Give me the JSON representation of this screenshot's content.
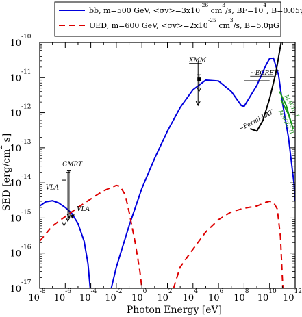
{
  "chart_data": {
    "type": "line",
    "xlabel": "Photon Energy [eV]",
    "ylabel": "SED [erg/cm",
    "ylabel_sup": "2",
    "ylabel_end": " s]",
    "x_scale": "log",
    "y_scale": "log",
    "xlim": [
      1e-08,
      1000000000000.0
    ],
    "ylim": [
      1e-17,
      1e-10
    ],
    "x_ticks": [
      {
        "value": 1e-08,
        "base": "10",
        "exp": "-8"
      },
      {
        "value": 1e-06,
        "base": "10",
        "exp": "-6"
      },
      {
        "value": 0.0001,
        "base": "10",
        "exp": "-4"
      },
      {
        "value": 0.01,
        "base": "10",
        "exp": "-2"
      },
      {
        "value": 1,
        "base": "10",
        "exp": "0"
      },
      {
        "value": 100.0,
        "base": "10",
        "exp": "2"
      },
      {
        "value": 10000.0,
        "base": "10",
        "exp": "4"
      },
      {
        "value": 1000000.0,
        "base": "10",
        "exp": "6"
      },
      {
        "value": 100000000.0,
        "base": "10",
        "exp": "8"
      },
      {
        "value": 10000000000.0,
        "base": "10",
        "exp": "10"
      },
      {
        "value": 1000000000000.0,
        "base": "10",
        "exp": "12"
      }
    ],
    "y_ticks": [
      {
        "value": 1e-17,
        "base": "10",
        "exp": "-17"
      },
      {
        "value": 1e-16,
        "base": "10",
        "exp": "-16"
      },
      {
        "value": 1e-15,
        "base": "10",
        "exp": "-15"
      },
      {
        "value": 1e-14,
        "base": "10",
        "exp": "-14"
      },
      {
        "value": 1e-13,
        "base": "10",
        "exp": "-13"
      },
      {
        "value": 1e-12,
        "base": "10",
        "exp": "-12"
      },
      {
        "value": 1e-11,
        "base": "10",
        "exp": "-11"
      },
      {
        "value": 1e-10,
        "base": "10",
        "exp": "-10"
      }
    ],
    "legend_placement": "top",
    "legend": [
      {
        "parts": [
          "bb, m=500 GeV, <σv>=3x10",
          "-26",
          " cm",
          "3",
          "/s, BF=10",
          "4",
          ", B=0.05μG"
        ]
      },
      {
        "parts": [
          "UED, m=600 GeV, <σv>=2x10",
          "-25",
          " cm",
          "3",
          "/s, B=5.0μG"
        ]
      }
    ],
    "series": [
      {
        "color": "#0000dd",
        "style": "solid",
        "points": [
          [
            1e-08,
            2.2e-15
          ],
          [
            3e-08,
            2.9e-15
          ],
          [
            1e-07,
            3.1e-15
          ],
          [
            3e-07,
            2.7e-15
          ],
          [
            1e-06,
            2e-15
          ],
          [
            3e-06,
            1.4e-15
          ],
          [
            1e-05,
            7e-16
          ],
          [
            3e-05,
            2.2e-16
          ],
          [
            6e-05,
            5e-17
          ],
          [
            9e-05,
            1e-17
          ]
        ]
      },
      {
        "color": "#0000dd",
        "style": "solid",
        "points": [
          [
            0.004,
            1e-17
          ],
          [
            0.01,
            4e-17
          ],
          [
            0.1,
            6e-16
          ],
          [
            1,
            7e-15
          ],
          [
            10,
            5e-14
          ],
          [
            100,
            3e-13
          ],
          [
            1000,
            1.4e-12
          ],
          [
            10000.0,
            4.5e-12
          ],
          [
            100000.0,
            8.5e-12
          ],
          [
            1000000.0,
            8e-12
          ],
          [
            10000000.0,
            4e-12
          ],
          [
            60000000.0,
            1.6e-12
          ],
          [
            100000000.0,
            1.5e-12
          ],
          [
            1000000000.0,
            6e-12
          ],
          [
            5000000000.0,
            2.2e-11
          ],
          [
            10000000000.0,
            3.5e-11
          ],
          [
            20000000000.0,
            3.6e-11
          ],
          [
            50000000000.0,
            1.2e-11
          ],
          [
            100000000000.0,
            2e-12
          ],
          [
            300000000000.0,
            2e-13
          ],
          [
            800000000000.0,
            1e-14
          ],
          [
            1000000000000.0,
            3e-15
          ]
        ]
      },
      {
        "color": "#dd0000",
        "style": "dashed",
        "points": [
          [
            1e-08,
            2.2e-16
          ],
          [
            1e-07,
            6e-16
          ],
          [
            1e-06,
            1.1e-15
          ],
          [
            1e-05,
            2e-15
          ],
          [
            0.0001,
            3.5e-15
          ],
          [
            0.001,
            6e-15
          ],
          [
            0.01,
            8.5e-15
          ],
          [
            0.02,
            8e-15
          ],
          [
            0.05,
            4.5e-15
          ],
          [
            0.1,
            1.5e-15
          ],
          [
            0.3,
            2e-16
          ],
          [
            0.7,
            3e-17
          ],
          [
            1,
            1e-17
          ]
        ]
      },
      {
        "color": "#dd0000",
        "style": "dashed",
        "points": [
          [
            300,
            1e-17
          ],
          [
            1000.0,
            4e-17
          ],
          [
            10000.0,
            1.3e-16
          ],
          [
            100000.0,
            4e-16
          ],
          [
            1000000.0,
            9e-16
          ],
          [
            10000000.0,
            1.5e-15
          ],
          [
            100000000.0,
            1.9e-15
          ],
          [
            1000000000.0,
            2.2e-15
          ],
          [
            5000000000.0,
            2.8e-15
          ],
          [
            10000000000.0,
            3e-15
          ],
          [
            20000000000.0,
            2.8e-15
          ],
          [
            40000000000.0,
            1.8e-15
          ],
          [
            70000000000.0,
            3e-16
          ],
          [
            100000000000.0,
            2e-17
          ],
          [
            110000000000.0,
            1e-17
          ]
        ]
      }
    ],
    "upper_limits": [
      {
        "x": 8e-07,
        "top": 1.2e-14,
        "bottom": 6e-16
      },
      {
        "x": 1.6e-06,
        "top": 2e-14,
        "bottom": 8e-16
      },
      {
        "x": 2e-06,
        "top": 2.2e-14,
        "bottom": 1e-15
      },
      {
        "x": 3.5e-06,
        "top": 1.2e-15,
        "bottom": 1e-15
      },
      {
        "x": 25000.0,
        "top": 2.8e-11,
        "bottom": 1.6e-12
      },
      {
        "x": 30000.0,
        "top": 1.2e-11,
        "bottom": 4e-12
      }
    ],
    "xmm_point": {
      "x": 30000.0,
      "y": 9e-12
    },
    "fermi_line": {
      "color": "#000000",
      "points": [
        [
          300000000.0,
          3.5e-13
        ],
        [
          1000000000.0,
          3e-13
        ],
        [
          3000000000.0,
          6e-13
        ],
        [
          10000000000.0,
          2.5e-12
        ],
        [
          30000000000.0,
          1.3e-11
        ],
        [
          80000000000.0,
          1e-10
        ]
      ]
    },
    "magic_lines": [
      {
        "color": "#1a9a1a",
        "points": [
          [
            60000000000.0,
            4e-12
          ],
          [
            200000000000.0,
            1.6e-12
          ],
          [
            500000000000.0,
            5e-13
          ]
        ]
      },
      {
        "color": "#1a9a1a",
        "points": [
          [
            80000000000.0,
            2.3e-12
          ],
          [
            300000000000.0,
            9e-13
          ],
          [
            700000000000.0,
            3.5e-13
          ]
        ]
      }
    ],
    "egret_segment": {
      "x1": 100000000.0,
      "x2": 10000000000.0,
      "y": 8e-12
    },
    "annotations": [
      {
        "text": "VLA",
        "x": 3e-08,
        "y": 6.5e-15,
        "class": "ann"
      },
      {
        "text": "GMRT",
        "x": 6e-07,
        "y": 3e-14,
        "class": "ann"
      },
      {
        "text": "VLA",
        "x": 8e-06,
        "y": 1.6e-15,
        "class": "ann"
      },
      {
        "text": "XMM",
        "x": 5000.0,
        "y": 2.8e-11,
        "class": "ann"
      },
      {
        "text": "~EGRET",
        "x": 300000000.0,
        "y": 1.2e-11,
        "class": "ann"
      },
      {
        "text": "~Fermi-LAT",
        "x": 50000000.0,
        "y": 3e-13,
        "class": "ann",
        "rotate": -28
      },
      {
        "text": "MAGIC I",
        "x": 150000000000.0,
        "y": 3e-12,
        "class": "ann-green",
        "rotate": 62
      },
      {
        "text": "MAGIC II",
        "x": 50000000000.0,
        "y": 1.1e-12,
        "class": "ann-green",
        "rotate": 62
      }
    ]
  }
}
